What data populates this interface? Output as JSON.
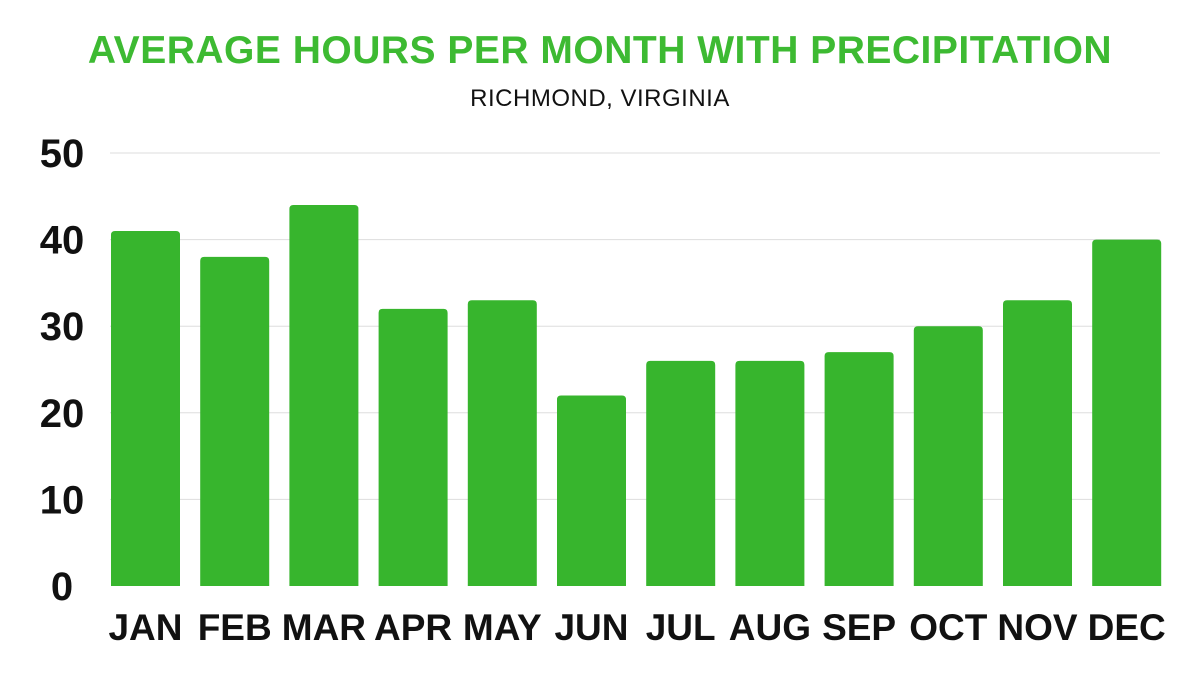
{
  "chart_data": {
    "type": "bar",
    "title": "AVERAGE HOURS PER MONTH WITH PRECIPITATION",
    "subtitle": "RICHMOND, VIRGINIA",
    "xlabel": "",
    "ylabel": "",
    "categories": [
      "JAN",
      "FEB",
      "MAR",
      "APR",
      "MAY",
      "JUN",
      "JUL",
      "AUG",
      "SEP",
      "OCT",
      "NOV",
      "DEC"
    ],
    "values": [
      41,
      38,
      44,
      32,
      33,
      22,
      26,
      26,
      27,
      30,
      33,
      40
    ],
    "ylim": [
      0,
      50
    ],
    "yticks": [
      0,
      10,
      20,
      30,
      40,
      50
    ],
    "grid": true,
    "legend": "none",
    "bar_color": "#37b52d",
    "title_color": "#3dba32",
    "grid_color": "#dddddd"
  }
}
